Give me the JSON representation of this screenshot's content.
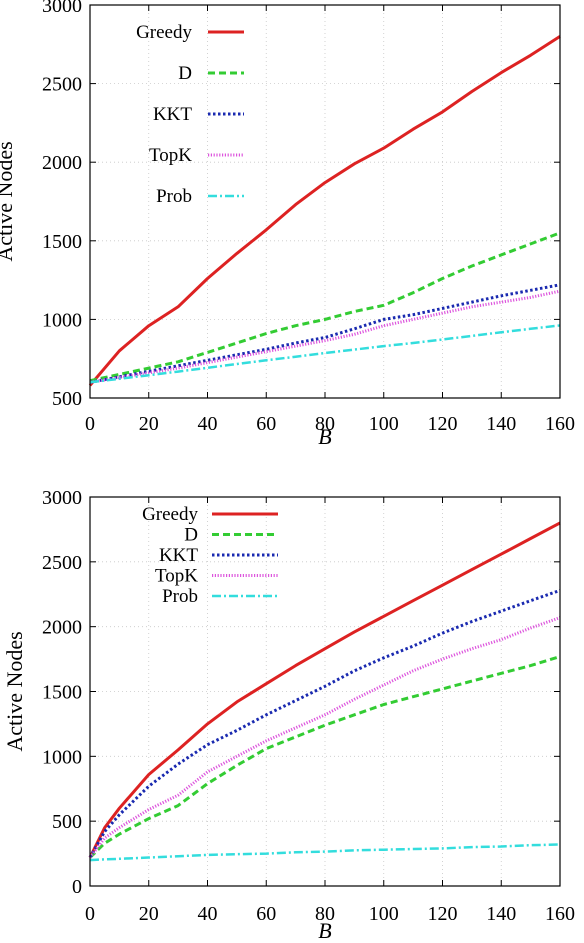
{
  "chart_data": [
    {
      "type": "line",
      "title": "",
      "xlabel": "B",
      "ylabel": "Active Nodes",
      "xlim": [
        0,
        160
      ],
      "ylim": [
        500,
        3000
      ],
      "xticks": [
        0,
        20,
        40,
        60,
        80,
        100,
        120,
        140,
        160
      ],
      "yticks": [
        500,
        1000,
        1500,
        2000,
        2500,
        3000
      ],
      "grid": true,
      "legend_placement": "top-left",
      "x": [
        0,
        10,
        20,
        30,
        40,
        50,
        60,
        70,
        80,
        90,
        100,
        110,
        120,
        130,
        140,
        150,
        160
      ],
      "series": [
        {
          "name": "Greedy",
          "color": "#dd2222",
          "dash": "solid",
          "values": [
            580,
            800,
            960,
            1080,
            1260,
            1420,
            1570,
            1730,
            1870,
            1990,
            2090,
            2210,
            2320,
            2450,
            2570,
            2680,
            2800
          ]
        },
        {
          "name": "D",
          "color": "#33cc33",
          "dash": "dashed",
          "values": [
            610,
            650,
            690,
            730,
            790,
            850,
            910,
            960,
            1000,
            1050,
            1090,
            1170,
            1260,
            1340,
            1410,
            1480,
            1550
          ]
        },
        {
          "name": "KKT",
          "color": "#1a2ab0",
          "dash": "dotted",
          "values": [
            600,
            635,
            670,
            705,
            740,
            775,
            810,
            850,
            885,
            940,
            1000,
            1030,
            1070,
            1110,
            1150,
            1185,
            1220
          ]
        },
        {
          "name": "TopK",
          "color": "#dd55dd",
          "dash": "fine",
          "values": [
            600,
            630,
            660,
            690,
            725,
            760,
            795,
            830,
            865,
            905,
            960,
            1000,
            1040,
            1080,
            1110,
            1140,
            1180
          ]
        },
        {
          "name": "Prob",
          "color": "#33dddd",
          "dash": "dashdot",
          "values": [
            600,
            622,
            645,
            668,
            692,
            716,
            740,
            763,
            786,
            808,
            830,
            850,
            872,
            895,
            918,
            940,
            962
          ]
        }
      ]
    },
    {
      "type": "line",
      "title": "",
      "xlabel": "B",
      "ylabel": "Active Nodes",
      "xlim": [
        0,
        160
      ],
      "ylim": [
        0,
        3000
      ],
      "xticks": [
        0,
        20,
        40,
        60,
        80,
        100,
        120,
        140,
        160
      ],
      "yticks": [
        0,
        500,
        1000,
        1500,
        2000,
        2500,
        3000
      ],
      "grid": true,
      "legend_placement": "top-left",
      "x": [
        0,
        5,
        10,
        20,
        30,
        40,
        50,
        60,
        70,
        80,
        90,
        100,
        110,
        120,
        130,
        140,
        150,
        160
      ],
      "series": [
        {
          "name": "Greedy",
          "color": "#dd2222",
          "dash": "solid",
          "values": [
            220,
            450,
            600,
            860,
            1050,
            1250,
            1420,
            1560,
            1700,
            1830,
            1960,
            2080,
            2200,
            2320,
            2440,
            2560,
            2680,
            2800
          ]
        },
        {
          "name": "D",
          "color": "#33cc33",
          "dash": "dashed",
          "values": [
            220,
            330,
            400,
            520,
            620,
            790,
            930,
            1060,
            1150,
            1240,
            1320,
            1400,
            1460,
            1520,
            1580,
            1640,
            1700,
            1770
          ]
        },
        {
          "name": "KKT",
          "color": "#1a2ab0",
          "dash": "dotted",
          "values": [
            220,
            420,
            550,
            770,
            940,
            1090,
            1200,
            1320,
            1430,
            1540,
            1660,
            1760,
            1850,
            1950,
            2040,
            2120,
            2200,
            2280
          ]
        },
        {
          "name": "TopK",
          "color": "#dd55dd",
          "dash": "fine",
          "values": [
            220,
            370,
            450,
            590,
            700,
            880,
            1000,
            1120,
            1220,
            1320,
            1440,
            1550,
            1660,
            1750,
            1830,
            1900,
            1990,
            2070
          ]
        },
        {
          "name": "Prob",
          "color": "#33dddd",
          "dash": "dashdot",
          "values": [
            200,
            205,
            210,
            220,
            230,
            240,
            245,
            250,
            260,
            265,
            275,
            280,
            285,
            290,
            300,
            305,
            315,
            320
          ]
        }
      ]
    }
  ]
}
